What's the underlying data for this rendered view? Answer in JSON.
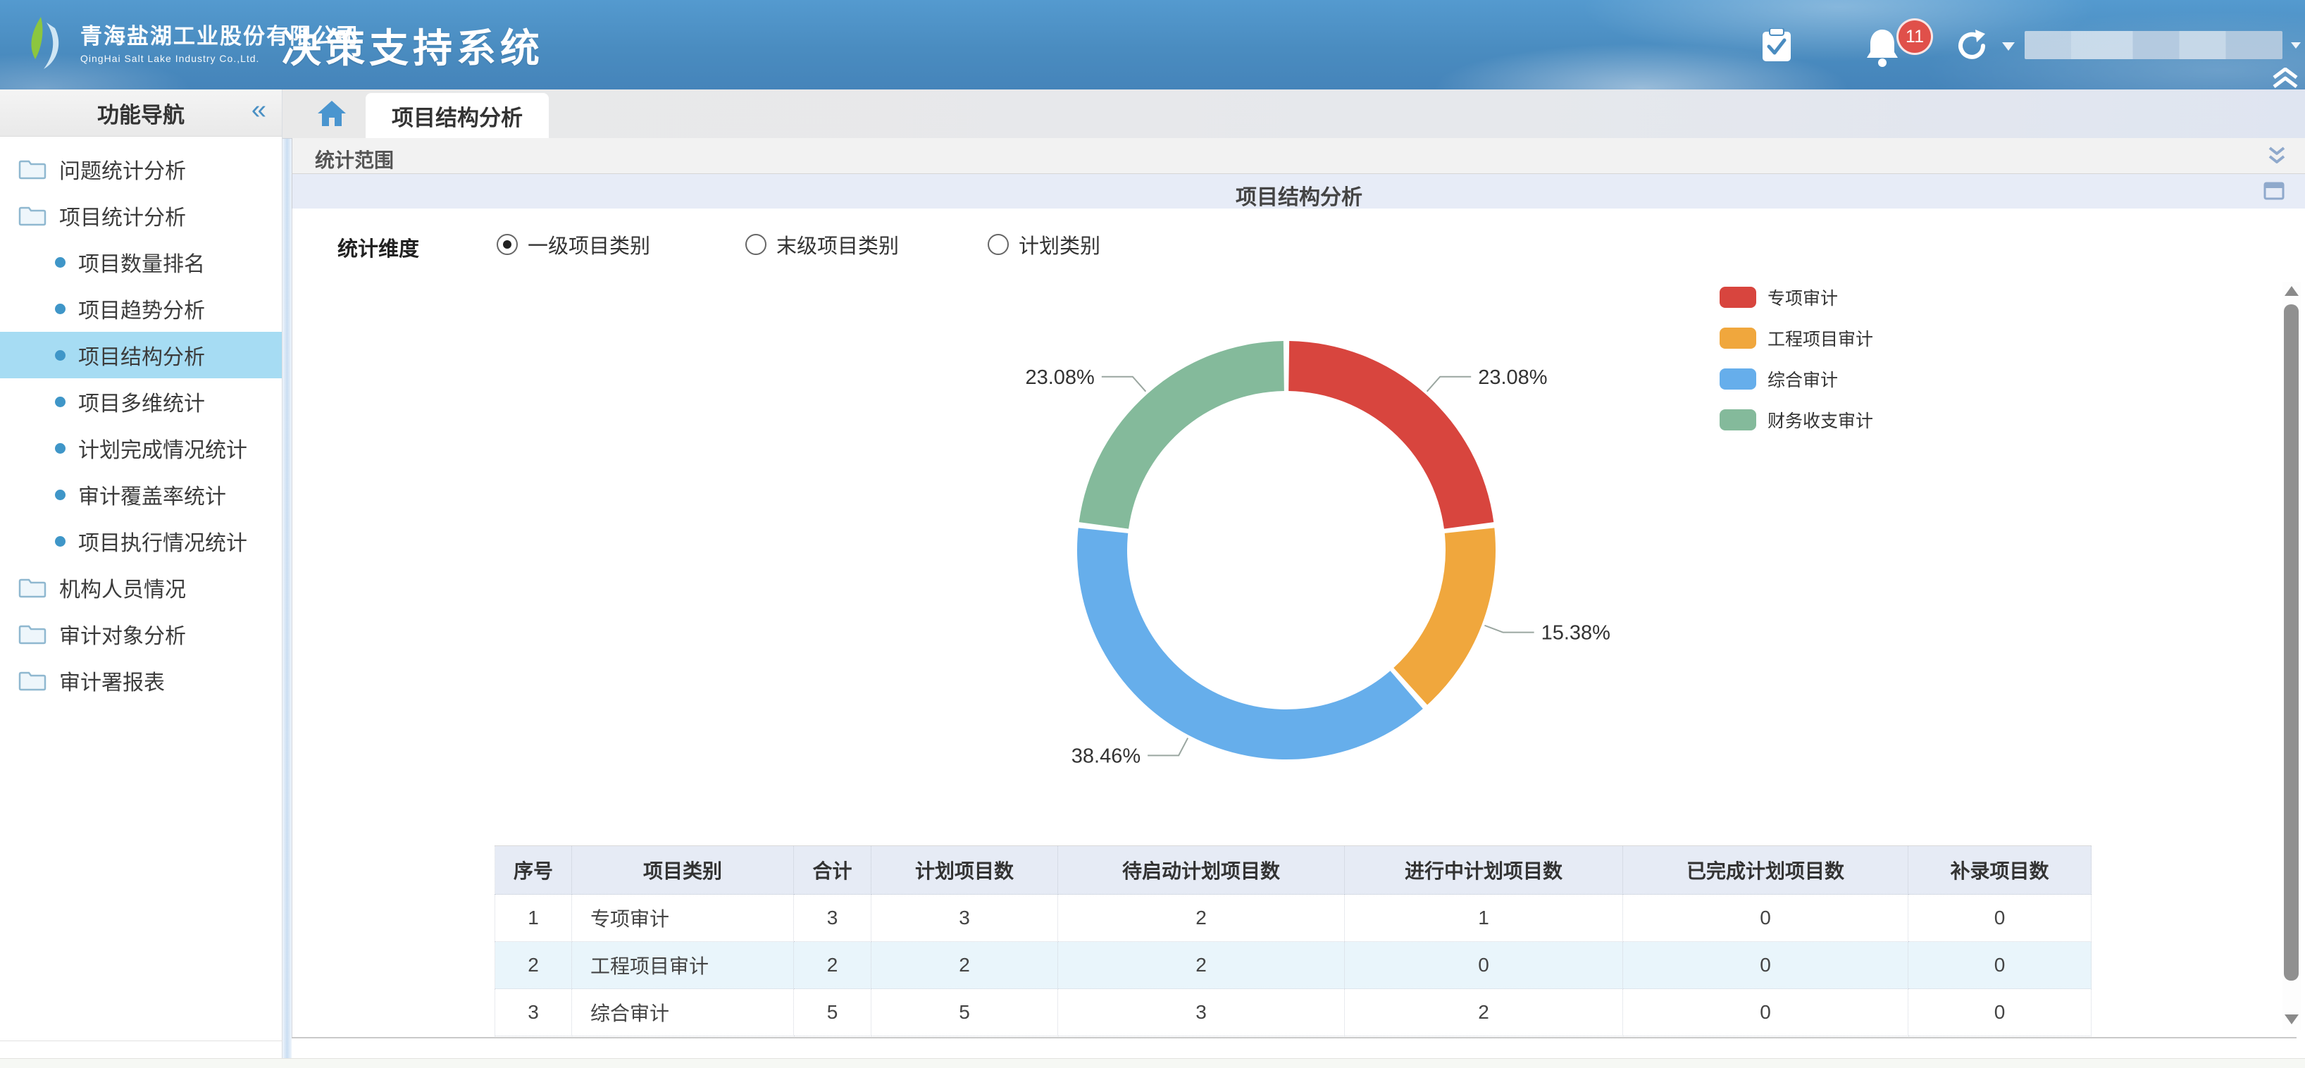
{
  "header": {
    "logo_cn": "青海盐湖工业股份有限公司",
    "logo_en": "QingHai Salt Lake Industry Co.,Ltd.",
    "app_title": "决策支持系统",
    "notification_count": "11"
  },
  "sidebar": {
    "title": "功能导航",
    "items": [
      {
        "label": "问题统计分析",
        "level": 1,
        "selected": false
      },
      {
        "label": "项目统计分析",
        "level": 1,
        "selected": false
      },
      {
        "label": "项目数量排名",
        "level": 2,
        "selected": false
      },
      {
        "label": "项目趋势分析",
        "level": 2,
        "selected": false
      },
      {
        "label": "项目结构分析",
        "level": 2,
        "selected": true
      },
      {
        "label": "项目多维统计",
        "level": 2,
        "selected": false
      },
      {
        "label": "计划完成情况统计",
        "level": 2,
        "selected": false
      },
      {
        "label": "审计覆盖率统计",
        "level": 2,
        "selected": false
      },
      {
        "label": "项目执行情况统计",
        "level": 2,
        "selected": false
      },
      {
        "label": "机构人员情况",
        "level": 1,
        "selected": false
      },
      {
        "label": "审计对象分析",
        "level": 1,
        "selected": false
      },
      {
        "label": "审计署报表",
        "level": 1,
        "selected": false
      }
    ]
  },
  "tabs": {
    "active_tab": "项目结构分析"
  },
  "panel": {
    "scope_label": "统计范围",
    "title": "项目结构分析"
  },
  "dimension": {
    "label": "统计维度",
    "options": [
      {
        "label": "一级项目类别",
        "selected": true
      },
      {
        "label": "末级项目类别",
        "selected": false
      },
      {
        "label": "计划类别",
        "selected": false
      }
    ]
  },
  "chart_data": {
    "type": "pie",
    "donut": true,
    "categories": [
      "专项审计",
      "工程项目审计",
      "综合审计",
      "财务收支审计"
    ],
    "values": [
      23.08,
      15.38,
      38.46,
      23.08
    ],
    "labels": [
      "23.08%",
      "15.38%",
      "38.46%",
      "23.08%"
    ],
    "colors": [
      "#d8453e",
      "#f0a73d",
      "#66aeeb",
      "#84ba9b"
    ],
    "legend_position": "right",
    "inner_radius_ratio": 0.76,
    "title": ""
  },
  "table": {
    "headers": [
      "序号",
      "项目类别",
      "合计",
      "计划项目数",
      "待启动计划项目数",
      "进行中计划项目数",
      "已完成计划项目数",
      "补录项目数"
    ],
    "rows": [
      [
        "1",
        "专项审计",
        "3",
        "3",
        "2",
        "1",
        "0",
        "0"
      ],
      [
        "2",
        "工程项目审计",
        "2",
        "2",
        "2",
        "0",
        "0",
        "0"
      ],
      [
        "3",
        "综合审计",
        "5",
        "5",
        "3",
        "2",
        "0",
        "0"
      ]
    ]
  },
  "colors": {
    "header_blue": "#4a8cc0",
    "sidebar_selected_bg": "#a6dcf3",
    "badge_red": "#e0504a",
    "table_header_bg": "#e6ebf5",
    "table_alt_row_bg": "#e9f5fb"
  }
}
